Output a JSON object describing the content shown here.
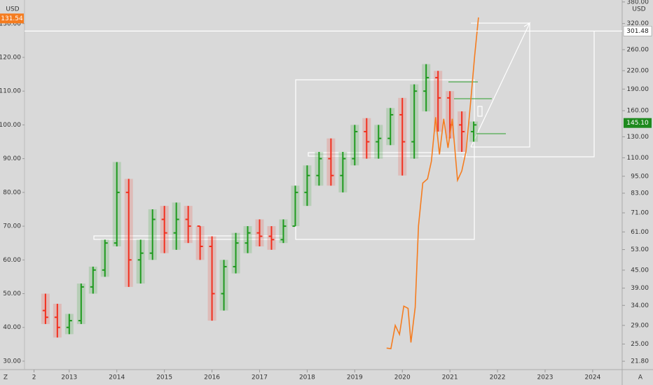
{
  "chart_data": {
    "type": "ohlc",
    "currency_left": "USD",
    "currency_right": "USD",
    "corner_left": "Z",
    "corner_right": "A",
    "xlim": [
      2012.06,
      2024.62
    ],
    "xticks": [
      {
        "value": 2012.26,
        "label": "2"
      },
      2013,
      2014,
      2015,
      2016,
      2017,
      2018,
      2019,
      2020,
      2021,
      2022,
      2023,
      2024
    ],
    "ylim": [
      27.5,
      137
    ],
    "yticks": [
      {
        "value": 30,
        "label": "30.00"
      },
      {
        "value": 40,
        "label": "40.00"
      },
      {
        "value": 50,
        "label": "50.00"
      },
      {
        "value": 60,
        "label": "60.00"
      },
      {
        "value": 70,
        "label": "70.00"
      },
      {
        "value": 80,
        "label": "80.00"
      },
      {
        "value": 90,
        "label": "90.00"
      },
      {
        "value": 100,
        "label": "100.00"
      },
      {
        "value": 110,
        "label": "110.00"
      },
      {
        "value": 120,
        "label": "120.00"
      },
      {
        "value": 130,
        "label": "130.00"
      }
    ],
    "y2lim": [
      20.4,
      386
    ],
    "y2_log": true,
    "y2ticks": [
      {
        "value": 21.8,
        "label": "21.80"
      },
      {
        "value": 25,
        "label": "25.00"
      },
      {
        "value": 29,
        "label": "29.00"
      },
      {
        "value": 34,
        "label": "34.00"
      },
      {
        "value": 39,
        "label": "39.00"
      },
      {
        "value": 45,
        "label": "45.00"
      },
      {
        "value": 53,
        "label": "53.00"
      },
      {
        "value": 61,
        "label": "61.00"
      },
      {
        "value": 71,
        "label": "71.00"
      },
      {
        "value": 83,
        "label": "83.00"
      },
      {
        "value": 95,
        "label": "95.00"
      },
      {
        "value": 110,
        "label": "110.00"
      },
      {
        "value": 130,
        "label": "130.00"
      },
      {
        "value": 160,
        "label": "160.00"
      },
      {
        "value": 190,
        "label": "190.00"
      },
      {
        "value": 220,
        "label": "220.00"
      },
      {
        "value": 260,
        "label": "260.00"
      },
      {
        "value": 320,
        "label": "320.00"
      },
      {
        "value": 380,
        "label": "380.00"
      }
    ],
    "up_color": "#1e9a1e",
    "down_color": "#f2301f",
    "x": [
      2012.5,
      2012.75,
      2013.0,
      2013.25,
      2013.5,
      2013.75,
      2014.0,
      2014.25,
      2014.5,
      2014.75,
      2015.0,
      2015.25,
      2015.5,
      2015.75,
      2016.0,
      2016.25,
      2016.5,
      2016.75,
      2017.0,
      2017.25,
      2017.5,
      2017.75,
      2018.0,
      2018.25,
      2018.5,
      2018.75,
      2019.0,
      2019.25,
      2019.5,
      2019.75,
      2020.0,
      2020.25,
      2020.5,
      2020.75,
      2021.0,
      2021.25,
      2021.5
    ],
    "open": [
      45,
      43,
      40,
      42,
      52,
      57,
      65,
      80,
      60,
      62,
      72,
      68,
      72,
      70,
      64,
      50,
      58,
      65,
      68,
      67,
      66,
      70,
      80,
      85,
      90,
      85,
      90,
      98,
      95,
      96,
      103,
      95,
      110,
      114,
      108,
      100,
      98
    ],
    "high": [
      50,
      47,
      44,
      53,
      58,
      66,
      89,
      84,
      66,
      75,
      76,
      77,
      76,
      70,
      67,
      60,
      68,
      70,
      72,
      70,
      72,
      82,
      88,
      92,
      96,
      92,
      100,
      102,
      100,
      105,
      108,
      112,
      118,
      116,
      110,
      104,
      101
    ],
    "low": [
      41,
      37,
      38,
      41,
      50,
      55,
      64,
      52,
      53,
      60,
      62,
      63,
      65,
      60,
      42,
      45,
      56,
      62,
      64,
      63,
      65,
      70,
      76,
      82,
      82,
      80,
      88,
      90,
      90,
      94,
      85,
      90,
      104,
      98,
      96,
      92,
      95
    ],
    "close": [
      43,
      40,
      42,
      52,
      57,
      65,
      80,
      60,
      62,
      72,
      68,
      72,
      70,
      64,
      50,
      58,
      65,
      68,
      67,
      66,
      70,
      80,
      85,
      90,
      85,
      90,
      98,
      95,
      96,
      103,
      95,
      110,
      114,
      108,
      100,
      98,
      100
    ],
    "line": {
      "color": "#f57c1f",
      "axis": "y2",
      "x": [
        2019.67,
        2019.76,
        2019.85,
        2019.94,
        2020.03,
        2020.12,
        2020.18,
        2020.27,
        2020.34,
        2020.43,
        2020.53,
        2020.61,
        2020.7,
        2020.78,
        2020.87,
        2020.96,
        2021.05,
        2021.16,
        2021.25,
        2021.34,
        2021.43,
        2021.52,
        2021.6
      ],
      "values": [
        24.2,
        24.1,
        29,
        27,
        33.8,
        33.2,
        25.3,
        33.5,
        64,
        90,
        93,
        107,
        152,
        113,
        150,
        119,
        150,
        92,
        99,
        116,
        168,
        248,
        336
      ]
    },
    "price_labels": [
      {
        "axis": "y",
        "value": 131.54,
        "color": "#f57c1f"
      },
      {
        "axis": "y2",
        "value": 301.48,
        "color": "#ffffff"
      },
      {
        "axis": "y2",
        "value": {
          "value": 145.1,
          "label": "145.10"
        },
        "color": "#1e8a1e"
      }
    ]
  }
}
